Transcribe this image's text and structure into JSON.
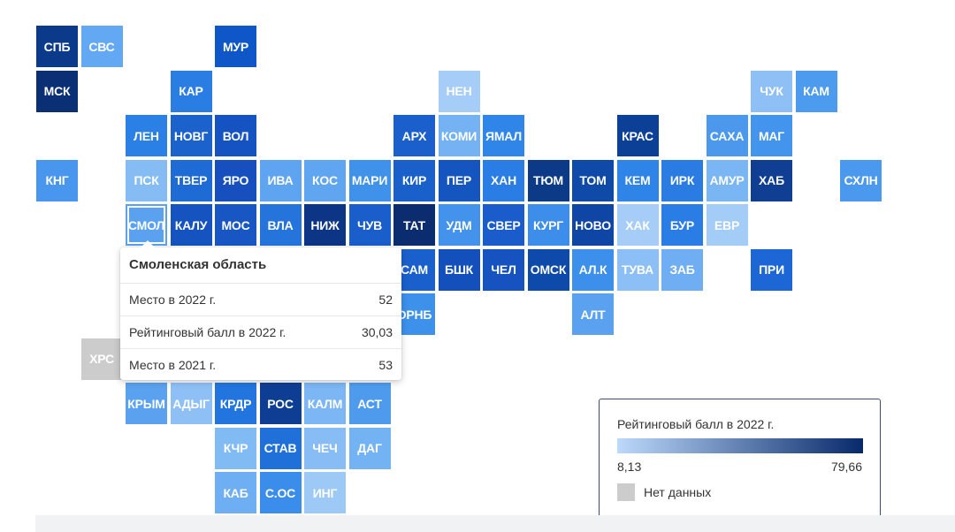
{
  "map": {
    "tiles": [
      {
        "label": "СПБ",
        "color": "#0b3a8b",
        "col": 0,
        "row": 0
      },
      {
        "label": "СВС",
        "color": "#63a8f2",
        "col": 1,
        "row": 0
      },
      {
        "label": "МУР",
        "color": "#0f56c9",
        "col": 4,
        "row": 0
      },
      {
        "label": "МСК",
        "color": "#0b2f75",
        "col": 0,
        "row": 1
      },
      {
        "label": "КАР",
        "color": "#2a7ee3",
        "col": 3,
        "row": 1
      },
      {
        "label": "НЕН",
        "color": "#a5cdf7",
        "col": 9,
        "row": 1
      },
      {
        "label": "ЧУК",
        "color": "#8fc0f5",
        "col": 16,
        "row": 1
      },
      {
        "label": "КАМ",
        "color": "#4c9bee",
        "col": 17,
        "row": 1
      },
      {
        "label": "ЛЕН",
        "color": "#2b80e6",
        "col": 2,
        "row": 2
      },
      {
        "label": "НОВГ",
        "color": "#1c62cc",
        "col": 3,
        "row": 2
      },
      {
        "label": "ВОЛ",
        "color": "#1553c2",
        "col": 4,
        "row": 2
      },
      {
        "label": "АРХ",
        "color": "#1a5fcc",
        "col": 8,
        "row": 2
      },
      {
        "label": "КОМИ",
        "color": "#74b2f3",
        "col": 9,
        "row": 2
      },
      {
        "label": "ЯМАЛ",
        "color": "#2f86e8",
        "col": 10,
        "row": 2
      },
      {
        "label": "КРАС",
        "color": "#0c3f96",
        "col": 13,
        "row": 2
      },
      {
        "label": "САХА",
        "color": "#4b98ec",
        "col": 15,
        "row": 2
      },
      {
        "label": "МАГ",
        "color": "#4394ec",
        "col": 16,
        "row": 2
      },
      {
        "label": "КНГ",
        "color": "#4896ed",
        "col": 0,
        "row": 3
      },
      {
        "label": "ПСК",
        "color": "#86bcf4",
        "col": 2,
        "row": 3
      },
      {
        "label": "ТВЕР",
        "color": "#1f6bd6",
        "col": 3,
        "row": 3
      },
      {
        "label": "ЯРО",
        "color": "#174fbf",
        "col": 4,
        "row": 3
      },
      {
        "label": "ИВА",
        "color": "#5ea4f0",
        "col": 5,
        "row": 3
      },
      {
        "label": "КОС",
        "color": "#5fa5f0",
        "col": 6,
        "row": 3
      },
      {
        "label": "МАРИ",
        "color": "#3f91ea",
        "col": 7,
        "row": 3
      },
      {
        "label": "КИР",
        "color": "#1a60ca",
        "col": 8,
        "row": 3
      },
      {
        "label": "ПЕР",
        "color": "#1455c0",
        "col": 9,
        "row": 3
      },
      {
        "label": "ХАН",
        "color": "#2b7de6",
        "col": 10,
        "row": 3
      },
      {
        "label": "ТЮМ",
        "color": "#0c3a86",
        "col": 11,
        "row": 3
      },
      {
        "label": "ТОМ",
        "color": "#0f4aa8",
        "col": 12,
        "row": 3
      },
      {
        "label": "КЕМ",
        "color": "#2e84e7",
        "col": 13,
        "row": 3
      },
      {
        "label": "ИРК",
        "color": "#2a7ce3",
        "col": 14,
        "row": 3
      },
      {
        "label": "АМУР",
        "color": "#7ab6f4",
        "col": 15,
        "row": 3
      },
      {
        "label": "ХАБ",
        "color": "#103e93",
        "col": 16,
        "row": 3
      },
      {
        "label": "СХЛН",
        "color": "#4b99ee",
        "col": 18,
        "row": 3
      },
      {
        "label": "СМОЛ",
        "color": "#5aa2ef",
        "col": 2,
        "row": 4,
        "selected": true
      },
      {
        "label": "КАЛУ",
        "color": "#1553c0",
        "col": 3,
        "row": 4
      },
      {
        "label": "МОС",
        "color": "#1856c4",
        "col": 4,
        "row": 4
      },
      {
        "label": "ВЛА",
        "color": "#2574dc",
        "col": 5,
        "row": 4
      },
      {
        "label": "НИЖ",
        "color": "#0c3685",
        "col": 6,
        "row": 4
      },
      {
        "label": "ЧУВ",
        "color": "#1a5ecb",
        "col": 7,
        "row": 4
      },
      {
        "label": "ТАТ",
        "color": "#0b2d6f",
        "col": 8,
        "row": 4
      },
      {
        "label": "УДМ",
        "color": "#4393ec",
        "col": 9,
        "row": 4
      },
      {
        "label": "СВЕР",
        "color": "#1a5ccb",
        "col": 10,
        "row": 4
      },
      {
        "label": "КУРГ",
        "color": "#3d8eea",
        "col": 11,
        "row": 4
      },
      {
        "label": "НОВО",
        "color": "#0f45a4",
        "col": 12,
        "row": 4
      },
      {
        "label": "ХАК",
        "color": "#a5cdf8",
        "col": 13,
        "row": 4
      },
      {
        "label": "БУР",
        "color": "#2b7de6",
        "col": 14,
        "row": 4
      },
      {
        "label": "ЕВР",
        "color": "#a3ccf7",
        "col": 15,
        "row": 4
      },
      {
        "label": "САМ",
        "color": "#1a60cc",
        "col": 8,
        "row": 5
      },
      {
        "label": "БШК",
        "color": "#1350bb",
        "col": 9,
        "row": 5
      },
      {
        "label": "ЧЕЛ",
        "color": "#1653c1",
        "col": 10,
        "row": 5
      },
      {
        "label": "ОМСК",
        "color": "#0e4aa9",
        "col": 11,
        "row": 5
      },
      {
        "label": "АЛ.К",
        "color": "#3c8fea",
        "col": 12,
        "row": 5
      },
      {
        "label": "ТУВА",
        "color": "#8bbff5",
        "col": 13,
        "row": 5
      },
      {
        "label": "ЗАБ",
        "color": "#6faef2",
        "col": 14,
        "row": 5
      },
      {
        "label": "ПРИ",
        "color": "#1d66d6",
        "col": 16,
        "row": 5
      },
      {
        "label": "ОРНБ",
        "color": "#3d91ea",
        "col": 8,
        "row": 6
      },
      {
        "label": "АЛТ",
        "color": "#5aa2ef",
        "col": 12,
        "row": 6
      },
      {
        "label": "ХРС",
        "color": "#cccccc",
        "col": 1,
        "row": 7
      },
      {
        "label": "КРЫМ",
        "color": "#5aa1ef",
        "col": 2,
        "row": 8
      },
      {
        "label": "АДЫГ",
        "color": "#8ec0f5",
        "col": 3,
        "row": 8
      },
      {
        "label": "КРДР",
        "color": "#2275de",
        "col": 4,
        "row": 8
      },
      {
        "label": "РОС",
        "color": "#0e3e94",
        "col": 5,
        "row": 8
      },
      {
        "label": "КАЛМ",
        "color": "#7cb6f4",
        "col": 6,
        "row": 8
      },
      {
        "label": "АСТ",
        "color": "#4e9bee",
        "col": 7,
        "row": 8
      },
      {
        "label": "КЧР",
        "color": "#81bbf4",
        "col": 4,
        "row": 9
      },
      {
        "label": "СТАВ",
        "color": "#2070da",
        "col": 5,
        "row": 9
      },
      {
        "label": "ЧЕЧ",
        "color": "#87bcf5",
        "col": 6,
        "row": 9
      },
      {
        "label": "ДАГ",
        "color": "#74b3f3",
        "col": 7,
        "row": 9
      },
      {
        "label": "КАБ",
        "color": "#6eaef2",
        "col": 4,
        "row": 10
      },
      {
        "label": "С.ОС",
        "color": "#3a8dea",
        "col": 5,
        "row": 10
      },
      {
        "label": "ИНГ",
        "color": "#9dc9f7",
        "col": 6,
        "row": 10
      }
    ]
  },
  "tooltip": {
    "title": "Смоленская область",
    "rows": [
      {
        "label": "Место в 2022 г.",
        "value": "52"
      },
      {
        "label": "Рейтинговый балл в 2022 г.",
        "value": "30,03"
      },
      {
        "label": "Место в 2021 г.",
        "value": "53"
      }
    ]
  },
  "legend": {
    "title": "Рейтинговый балл в 2022 г.",
    "min": "8,13",
    "max": "79,66",
    "no_data": "Нет данных",
    "gradient_from": "#bcd9fb",
    "gradient_to": "#08296a",
    "no_data_color": "#cccccc"
  }
}
